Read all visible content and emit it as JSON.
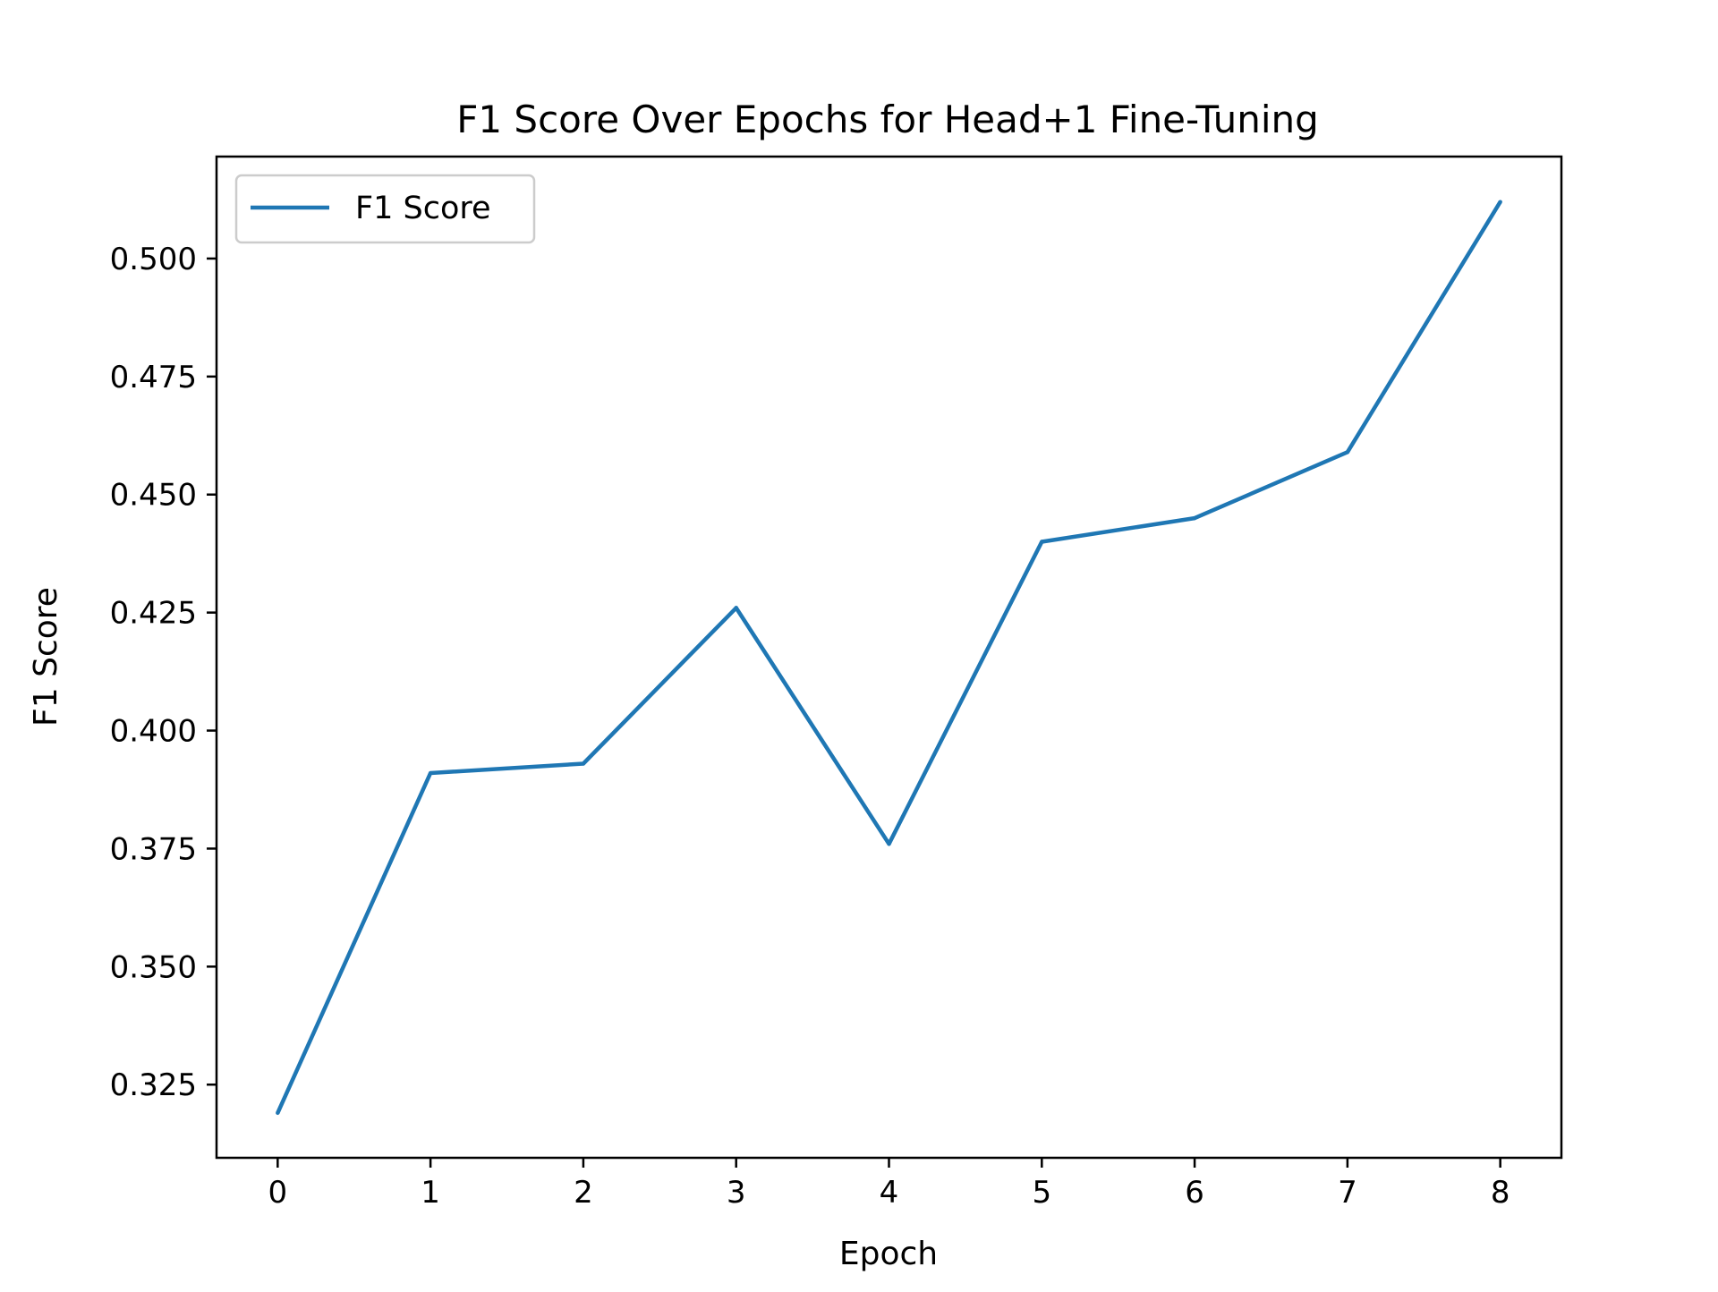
{
  "chart_data": {
    "type": "line",
    "title": "F1 Score Over Epochs for Head+1 Fine-Tuning",
    "xlabel": "Epoch",
    "ylabel": "F1 Score",
    "x": [
      0,
      1,
      2,
      3,
      4,
      5,
      6,
      7,
      8
    ],
    "series": [
      {
        "name": "F1 Score",
        "color": "#1f77b4",
        "values": [
          0.319,
          0.391,
          0.393,
          0.426,
          0.376,
          0.44,
          0.445,
          0.459,
          0.512
        ]
      }
    ],
    "xlim": [
      -0.4,
      8.4
    ],
    "ylim": [
      0.3095,
      0.5216
    ],
    "xticks": [
      0,
      1,
      2,
      3,
      4,
      5,
      6,
      7,
      8
    ],
    "xtick_labels": [
      "0",
      "1",
      "2",
      "3",
      "4",
      "5",
      "6",
      "7",
      "8"
    ],
    "yticks": [
      0.325,
      0.35,
      0.375,
      0.4,
      0.425,
      0.45,
      0.475,
      0.5
    ],
    "ytick_labels": [
      "0.325",
      "0.350",
      "0.375",
      "0.400",
      "0.425",
      "0.450",
      "0.475",
      "0.500"
    ],
    "grid": false,
    "legend_position": "upper-left"
  }
}
